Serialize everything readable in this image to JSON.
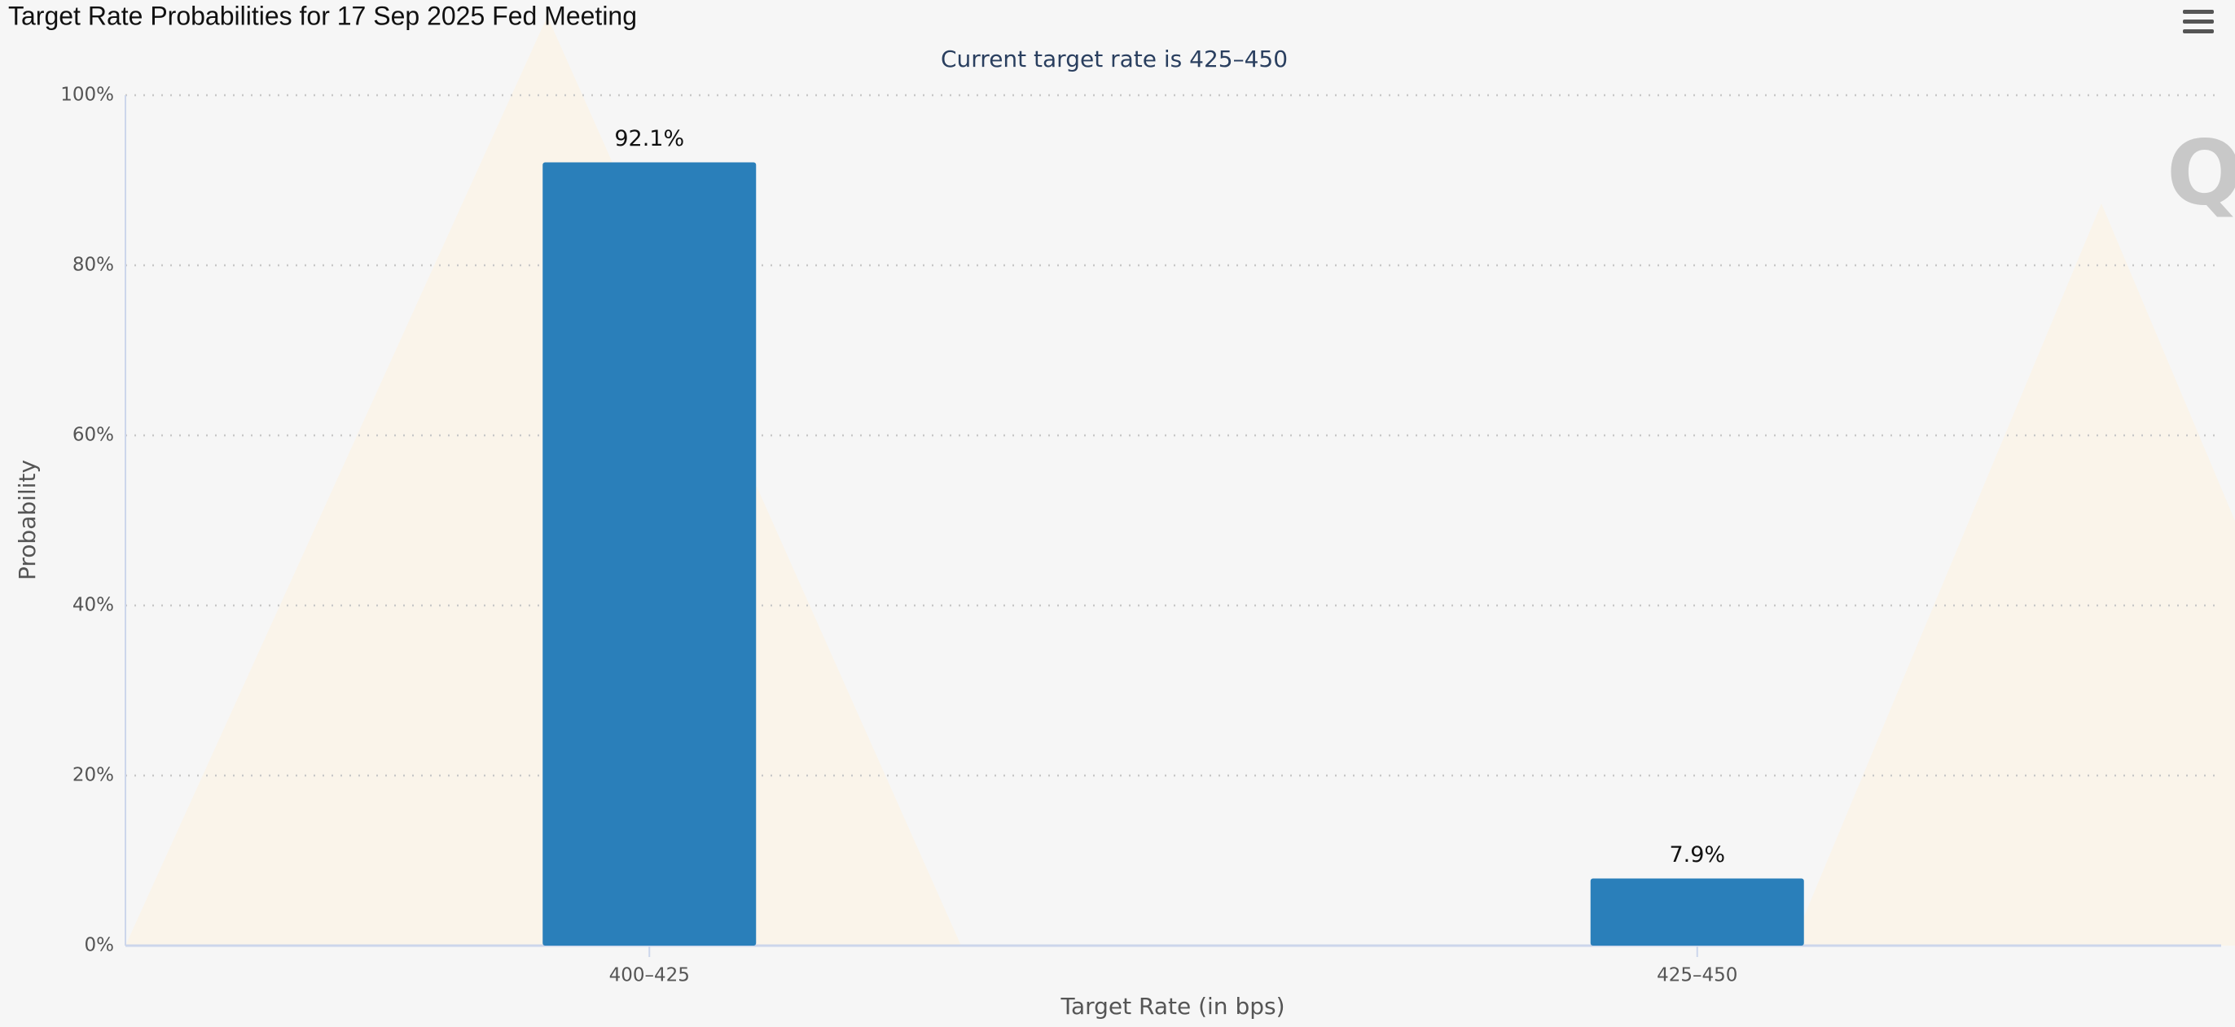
{
  "chart_data": {
    "type": "bar",
    "title": "Target Rate Probabilities for 17 Sep 2025 Fed Meeting",
    "subtitle": "Current target rate is 425–450",
    "x_label": "Target Rate (in bps)",
    "y_label": "Probability",
    "categories": [
      "400–425",
      "425–450"
    ],
    "values": [
      92.1,
      7.9
    ],
    "value_labels": [
      "92.1%",
      "7.9%"
    ],
    "color": "#2a7fba",
    "ylim": [
      0,
      100
    ],
    "yticks": [
      {
        "value": 0,
        "label": "0%"
      },
      {
        "value": 20,
        "label": "20%"
      },
      {
        "value": 40,
        "label": "40%"
      },
      {
        "value": 60,
        "label": "60%"
      },
      {
        "value": 80,
        "label": "80%"
      },
      {
        "value": 100,
        "label": "100%"
      }
    ],
    "grid": true
  }
}
